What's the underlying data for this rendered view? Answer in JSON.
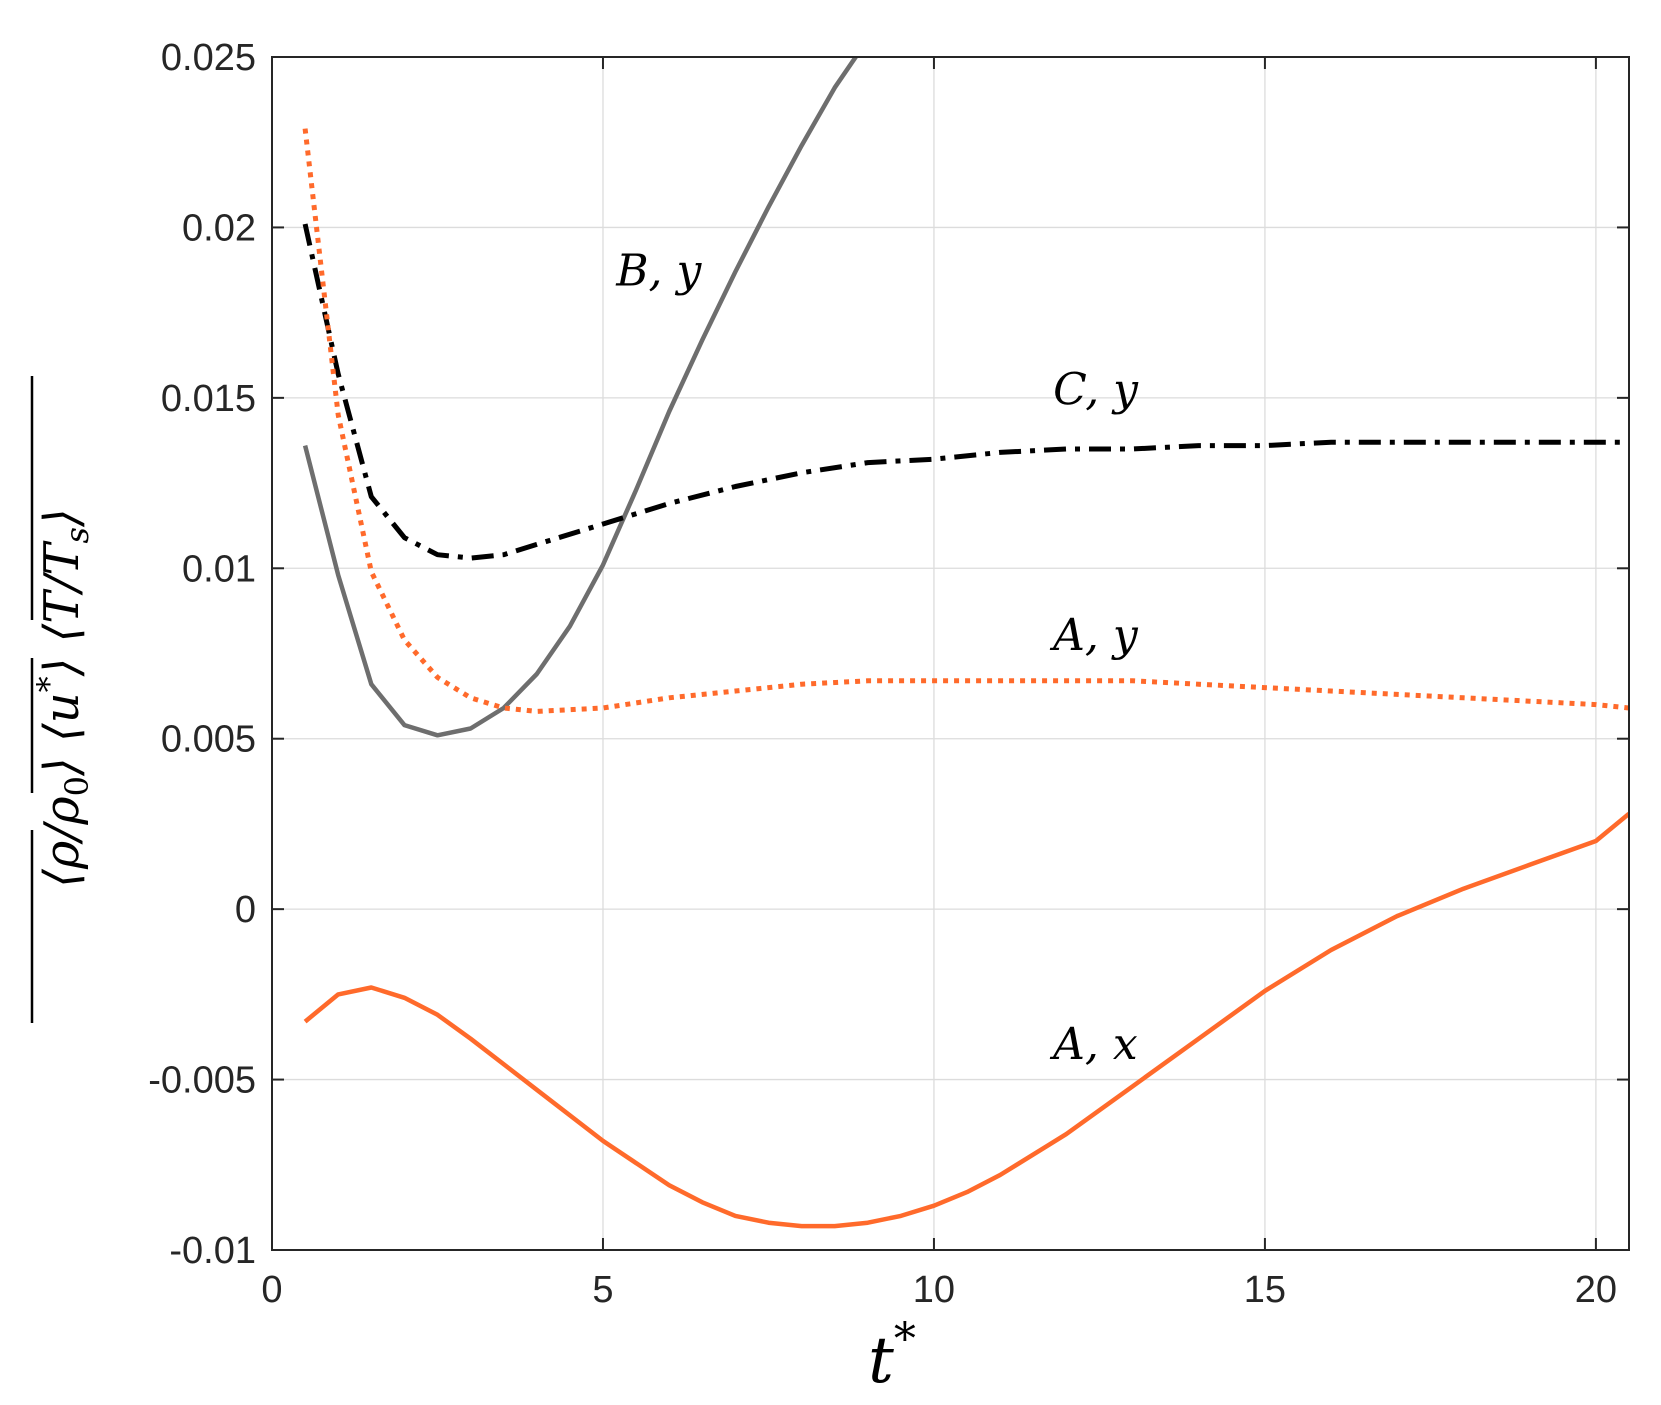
{
  "chart_data": {
    "type": "line",
    "xlabel": "t*",
    "ylabel": "⟨ρ/ρ₀⟩ ⟨u*⟩ ⟨T/Tₛ⟩",
    "xlim": [
      0,
      20.5
    ],
    "ylim": [
      -0.01,
      0.025
    ],
    "x_ticks": [
      0,
      5,
      10,
      15,
      20
    ],
    "x_tick_labels": [
      "0",
      "5",
      "10",
      "15",
      "20"
    ],
    "y_ticks": [
      -0.01,
      -0.005,
      0,
      0.005,
      0.01,
      0.015,
      0.02,
      0.025
    ],
    "y_tick_labels": [
      "-0.01",
      "-0.005",
      "0",
      "0.005",
      "0.01",
      "0.015",
      "0.02",
      "0.025"
    ],
    "grid": true,
    "colors": {
      "gray": "#6e6e6e",
      "black": "#000000",
      "orange": "#ff6a2b"
    },
    "series": [
      {
        "name": "B, y",
        "color": "#6e6e6e",
        "style": "solid",
        "x": [
          0.5,
          1,
          1.5,
          2,
          2.5,
          3,
          3.5,
          4,
          4.5,
          5,
          5.5,
          6,
          6.5,
          7,
          7.5,
          8,
          8.5,
          9.1
        ],
        "y": [
          0.0136,
          0.0098,
          0.0066,
          0.0054,
          0.0051,
          0.0053,
          0.0059,
          0.0069,
          0.0083,
          0.0101,
          0.0123,
          0.0146,
          0.0167,
          0.0187,
          0.0206,
          0.0224,
          0.0241,
          0.0258
        ]
      },
      {
        "name": "C, y",
        "color": "#000000",
        "style": "dashdot",
        "x": [
          0.5,
          1,
          1.5,
          2,
          2.5,
          3,
          3.5,
          4,
          5,
          6,
          7,
          8,
          9,
          10,
          11,
          12,
          13,
          14,
          15,
          16,
          17,
          18,
          19,
          20,
          20.5
        ],
        "y": [
          0.0201,
          0.0157,
          0.0121,
          0.0109,
          0.0104,
          0.0103,
          0.0104,
          0.0107,
          0.0113,
          0.0119,
          0.0124,
          0.0128,
          0.0131,
          0.0132,
          0.0134,
          0.0135,
          0.0135,
          0.0136,
          0.0136,
          0.0137,
          0.0137,
          0.0137,
          0.0137,
          0.0137,
          0.0137
        ]
      },
      {
        "name": "A, y",
        "color": "#ff6a2b",
        "style": "dotted",
        "x": [
          0.5,
          1,
          1.5,
          2,
          2.5,
          3,
          3.5,
          4,
          5,
          6,
          7,
          8,
          9,
          10,
          11,
          12,
          13,
          14,
          15,
          16,
          17,
          18,
          19,
          20,
          20.5
        ],
        "y": [
          0.0229,
          0.0145,
          0.0099,
          0.0079,
          0.0068,
          0.0062,
          0.0059,
          0.0058,
          0.0059,
          0.0062,
          0.0064,
          0.0066,
          0.0067,
          0.0067,
          0.0067,
          0.0067,
          0.0067,
          0.0066,
          0.0065,
          0.0064,
          0.0063,
          0.0062,
          0.0061,
          0.006,
          0.0059
        ]
      },
      {
        "name": "A, x",
        "color": "#ff6a2b",
        "style": "solid",
        "x": [
          0.5,
          1,
          1.5,
          2,
          2.5,
          3,
          4,
          5,
          6,
          6.5,
          7,
          7.5,
          8,
          8.5,
          9,
          9.5,
          10,
          10.5,
          11,
          12,
          13,
          14,
          15,
          16,
          17,
          18,
          19,
          20,
          20.5
        ],
        "y": [
          -0.0033,
          -0.0025,
          -0.0023,
          -0.0026,
          -0.0031,
          -0.0038,
          -0.0053,
          -0.0068,
          -0.0081,
          -0.0086,
          -0.009,
          -0.0092,
          -0.0093,
          -0.0093,
          -0.0092,
          -0.009,
          -0.0087,
          -0.0083,
          -0.0078,
          -0.0066,
          -0.0052,
          -0.0038,
          -0.0024,
          -0.0012,
          -0.0002,
          0.0006,
          0.0013,
          0.002,
          0.0028
        ]
      }
    ],
    "annotations": [
      {
        "text": "B, y",
        "x": 5.2,
        "y": 0.0183
      },
      {
        "text": "C, y",
        "x": 11.8,
        "y": 0.0148
      },
      {
        "text": "A, y",
        "x": 11.8,
        "y": 0.0076
      },
      {
        "text": "A, x",
        "x": 11.8,
        "y": -0.0044
      }
    ]
  }
}
